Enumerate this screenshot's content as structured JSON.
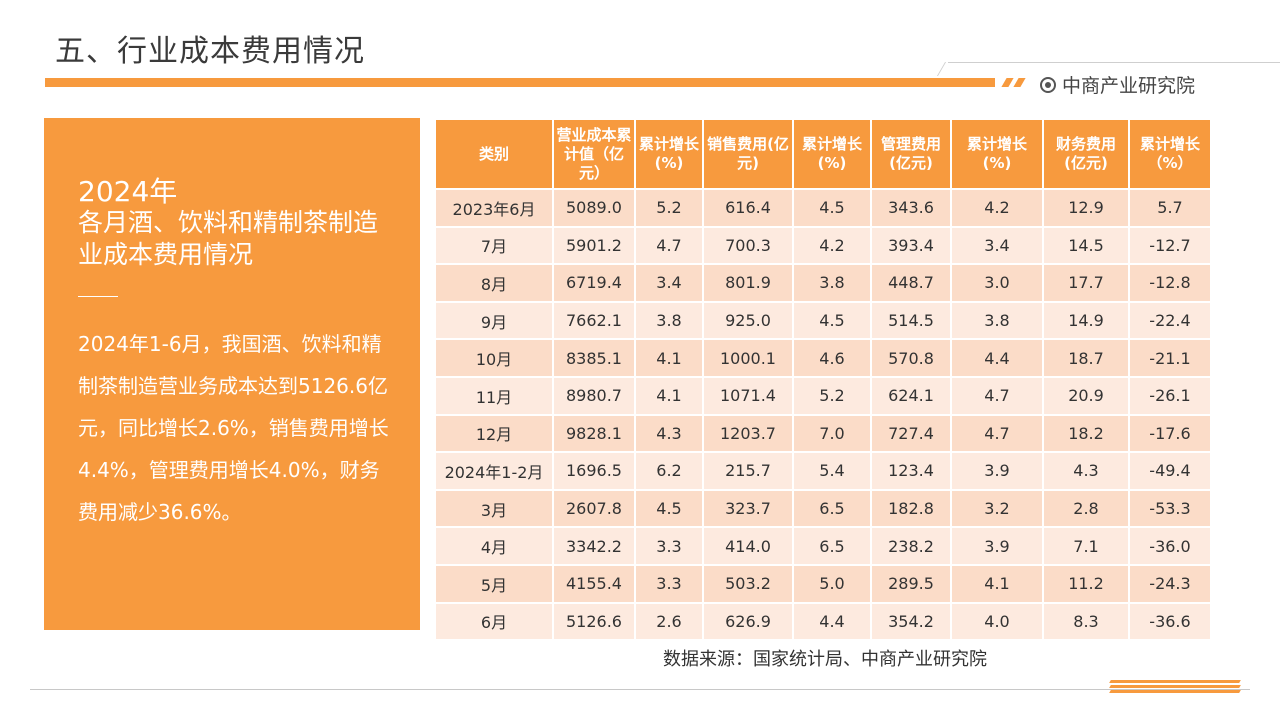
{
  "page": {
    "title": "五、行业成本费用情况"
  },
  "brand": {
    "name": "中商产业研究院",
    "accent_color": "#f79a3e",
    "icon": "logo-circle-icon"
  },
  "left_panel": {
    "year": "2024年",
    "title": "各月酒、饮料和精制茶制造业成本费用情况",
    "summary": "2024年1-6月，我国酒、饮料和精制茶制造营业务成本达到5126.6亿元，同比增长2.6%，销售费用增长4.4%，管理费用增长4.0%，财务费用减少36.6%。"
  },
  "table": {
    "headers": [
      "类别",
      "营业成本累计值（亿元）",
      "累计增长(%)",
      "销售费用(亿元)",
      "累计增长(%)",
      "管理费用(亿元)",
      "累计增长(%)",
      "财务费用(亿元)",
      "累计增长（%）"
    ],
    "rows": [
      [
        "2023年6月",
        "5089.0",
        "5.2",
        "616.4",
        "4.5",
        "343.6",
        "4.2",
        "12.9",
        "5.7"
      ],
      [
        "7月",
        "5901.2",
        "4.7",
        "700.3",
        "4.2",
        "393.4",
        "3.4",
        "14.5",
        "-12.7"
      ],
      [
        "8月",
        "6719.4",
        "3.4",
        "801.9",
        "3.8",
        "448.7",
        "3.0",
        "17.7",
        "-12.8"
      ],
      [
        "9月",
        "7662.1",
        "3.8",
        "925.0",
        "4.5",
        "514.5",
        "3.8",
        "14.9",
        "-22.4"
      ],
      [
        "10月",
        "8385.1",
        "4.1",
        "1000.1",
        "4.6",
        "570.8",
        "4.4",
        "18.7",
        "-21.1"
      ],
      [
        "11月",
        "8980.7",
        "4.1",
        "1071.4",
        "5.2",
        "624.1",
        "4.7",
        "20.9",
        "-26.1"
      ],
      [
        "12月",
        "9828.1",
        "4.3",
        "1203.7",
        "7.0",
        "727.4",
        "4.7",
        "18.2",
        "-17.6"
      ],
      [
        "2024年1-2月",
        "1696.5",
        "6.2",
        "215.7",
        "5.4",
        "123.4",
        "3.9",
        "4.3",
        "-49.4"
      ],
      [
        "3月",
        "2607.8",
        "4.5",
        "323.7",
        "6.5",
        "182.8",
        "3.2",
        "2.8",
        "-53.3"
      ],
      [
        "4月",
        "3342.2",
        "3.3",
        "414.0",
        "6.5",
        "238.2",
        "3.9",
        "7.1",
        "-36.0"
      ],
      [
        "5月",
        "4155.4",
        "3.3",
        "503.2",
        "5.0",
        "289.5",
        "4.1",
        "11.2",
        "-24.3"
      ],
      [
        "6月",
        "5126.6",
        "2.6",
        "626.9",
        "4.4",
        "354.2",
        "4.0",
        "8.3",
        "-36.6"
      ]
    ]
  },
  "source": "数据来源：国家统计局、中商产业研究院"
}
